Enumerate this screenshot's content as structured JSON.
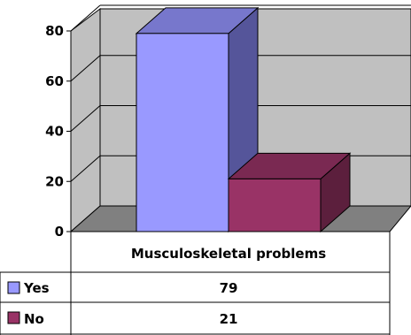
{
  "chart_data": {
    "type": "bar",
    "style": "3d-clustered",
    "categories": [
      "Musculoskeletal problems"
    ],
    "series": [
      {
        "name": "Yes",
        "values": [
          79
        ],
        "color": "#9999FF"
      },
      {
        "name": "No",
        "values": [
          21
        ],
        "color": "#993366"
      }
    ],
    "y_ticks": [
      "0",
      "20",
      "40",
      "60",
      "80"
    ],
    "ylim": [
      0,
      80
    ],
    "grid": true,
    "legend": "data-table",
    "table": {
      "rows": [
        {
          "label": "Yes",
          "value": "79"
        },
        {
          "label": "No",
          "value": "21"
        }
      ]
    },
    "colors": {
      "back_wall": "#C0C0C0",
      "floor": "#808080",
      "yes_front": "#9999FF",
      "yes_side": "#55559A",
      "yes_top": "#7777CC",
      "no_front": "#993366",
      "no_side": "#5C1F3D",
      "no_top": "#7A2952"
    }
  }
}
